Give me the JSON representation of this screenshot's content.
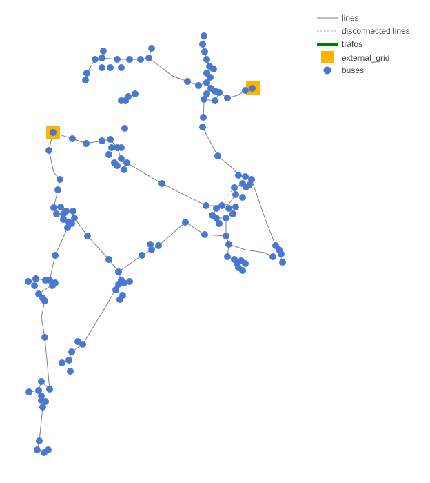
{
  "legend": {
    "lines": "lines",
    "disconnected": "disconnected lines",
    "trafos": "trafos",
    "external_grid": "external_grid",
    "buses": "buses"
  },
  "colors": {
    "line": "#7f7f7f",
    "disconnected": "#a9a9a9",
    "trafo": "#008000",
    "external_grid": "#ffb400",
    "bus": "#4a78cf"
  },
  "network": {
    "buses": [
      [
        296,
        52
      ],
      [
        294,
        64
      ],
      [
        297,
        75
      ],
      [
        300,
        86
      ],
      [
        304,
        96
      ],
      [
        310,
        100
      ],
      [
        300,
        106
      ],
      [
        305,
        112
      ],
      [
        300,
        120
      ],
      [
        306,
        128
      ],
      [
        312,
        132
      ],
      [
        318,
        134
      ],
      [
        300,
        136
      ],
      [
        312,
        146
      ],
      [
        296,
        144
      ],
      [
        330,
        142
      ],
      [
        356,
        131
      ],
      [
        366,
        128
      ],
      [
        295,
        170
      ],
      [
        294,
        184
      ],
      [
        316,
        226
      ],
      [
        346,
        254
      ],
      [
        356,
        256
      ],
      [
        365,
        260
      ],
      [
        352,
        266
      ],
      [
        340,
        272
      ],
      [
        362,
        268
      ],
      [
        342,
        282
      ],
      [
        352,
        286
      ],
      [
        357,
        271
      ],
      [
        299,
        298
      ],
      [
        314,
        302
      ],
      [
        322,
        298
      ],
      [
        332,
        302
      ],
      [
        342,
        300
      ],
      [
        338,
        310
      ],
      [
        328,
        316
      ],
      [
        314,
        316
      ],
      [
        318,
        324
      ],
      [
        308,
        312
      ],
      [
        297,
        340
      ],
      [
        328,
        342
      ],
      [
        332,
        354
      ],
      [
        330,
        372
      ],
      [
        340,
        376
      ],
      [
        344,
        382
      ],
      [
        350,
        378
      ],
      [
        356,
        382
      ],
      [
        346,
        388
      ],
      [
        352,
        392
      ],
      [
        400,
        356
      ],
      [
        405,
        362
      ],
      [
        408,
        368
      ],
      [
        396,
        372
      ],
      [
        410,
        380
      ],
      [
        235,
        266
      ],
      [
        269,
        322
      ],
      [
        230,
        356
      ],
      [
        218,
        354
      ],
      [
        220,
        362
      ],
      [
        206,
        370
      ],
      [
        150,
        74
      ],
      [
        170,
        86
      ],
      [
        188,
        86
      ],
      [
        160,
        98
      ],
      [
        176,
        98
      ],
      [
        148,
        98
      ],
      [
        138,
        86
      ],
      [
        148,
        84
      ],
      [
        126,
        106
      ],
      [
        124,
        116
      ],
      [
        204,
        86
      ],
      [
        216,
        84
      ],
      [
        220,
        70
      ],
      [
        272,
        118
      ],
      [
        288,
        124
      ],
      [
        196,
        136
      ],
      [
        186,
        140
      ],
      [
        182,
        146
      ],
      [
        176,
        146
      ],
      [
        181,
        186
      ],
      [
        105,
        201
      ],
      [
        125,
        208
      ],
      [
        148,
        204
      ],
      [
        160,
        202
      ],
      [
        162,
        214
      ],
      [
        176,
        214
      ],
      [
        170,
        214
      ],
      [
        158,
        224
      ],
      [
        176,
        230
      ],
      [
        166,
        236
      ],
      [
        170,
        240
      ],
      [
        184,
        236
      ],
      [
        180,
        246
      ],
      [
        77,
        192
      ],
      [
        71,
        218
      ],
      [
        87,
        260
      ],
      [
        84,
        275
      ],
      [
        78,
        301
      ],
      [
        88,
        300
      ],
      [
        82,
        310
      ],
      [
        96,
        306
      ],
      [
        92,
        318
      ],
      [
        100,
        322
      ],
      [
        106,
        306
      ],
      [
        108,
        316
      ],
      [
        98,
        330
      ],
      [
        104,
        324
      ],
      [
        92,
        310
      ],
      [
        127,
        342
      ],
      [
        158,
        376
      ],
      [
        172,
        394
      ],
      [
        176,
        406
      ],
      [
        188,
        408
      ],
      [
        172,
        412
      ],
      [
        180,
        410
      ],
      [
        168,
        420
      ],
      [
        178,
        428
      ],
      [
        174,
        434
      ],
      [
        80,
        370
      ],
      [
        41,
        408
      ],
      [
        52,
        404
      ],
      [
        50,
        414
      ],
      [
        66,
        406
      ],
      [
        72,
        406
      ],
      [
        80,
        410
      ],
      [
        76,
        414
      ],
      [
        56,
        426
      ],
      [
        62,
        432
      ],
      [
        65,
        436
      ],
      [
        65,
        489
      ],
      [
        113,
        495
      ],
      [
        120,
        499
      ],
      [
        104,
        510
      ],
      [
        100,
        522
      ],
      [
        90,
        526
      ],
      [
        102,
        538
      ],
      [
        60,
        553
      ],
      [
        72,
        564
      ],
      [
        42,
        568
      ],
      [
        56,
        566
      ],
      [
        60,
        574
      ],
      [
        66,
        582
      ],
      [
        62,
        590
      ],
      [
        60,
        580
      ],
      [
        57,
        639
      ],
      [
        54,
        652
      ],
      [
        64,
        656
      ],
      [
        70,
        652
      ]
    ],
    "external_grids": [
      [
        367,
        128
      ],
      [
        77,
        192
      ]
    ],
    "lines": [
      [
        [
          296,
          52
        ],
        [
          294,
          64
        ],
        [
          297,
          75
        ],
        [
          300,
          86
        ],
        [
          304,
          96
        ]
      ],
      [
        [
          304,
          96
        ],
        [
          310,
          100
        ],
        [
          300,
          106
        ],
        [
          305,
          112
        ],
        [
          300,
          120
        ],
        [
          306,
          128
        ]
      ],
      [
        [
          306,
          128
        ],
        [
          312,
          132
        ],
        [
          318,
          134
        ],
        [
          312,
          146
        ],
        [
          296,
          144
        ]
      ],
      [
        [
          318,
          134
        ],
        [
          330,
          142
        ],
        [
          345,
          138
        ],
        [
          356,
          131
        ],
        [
          367,
          128
        ]
      ],
      [
        [
          300,
          136
        ],
        [
          296,
          150
        ],
        [
          295,
          170
        ],
        [
          294,
          184
        ],
        [
          302,
          200
        ],
        [
          316,
          226
        ],
        [
          338,
          244
        ],
        [
          346,
          254
        ]
      ],
      [
        [
          346,
          254
        ],
        [
          356,
          256
        ],
        [
          365,
          260
        ],
        [
          357,
          271
        ],
        [
          352,
          266
        ],
        [
          340,
          272
        ],
        [
          342,
          282
        ]
      ],
      [
        [
          365,
          260
        ],
        [
          385,
          318
        ],
        [
          400,
          356
        ],
        [
          405,
          362
        ],
        [
          410,
          380
        ]
      ],
      [
        [
          342,
          282
        ],
        [
          332,
          296
        ],
        [
          322,
          298
        ],
        [
          314,
          302
        ],
        [
          308,
          312
        ]
      ],
      [
        [
          342,
          300
        ],
        [
          338,
          310
        ],
        [
          328,
          316
        ],
        [
          314,
          316
        ],
        [
          318,
          324
        ]
      ],
      [
        [
          322,
          298
        ],
        [
          299,
          298
        ],
        [
          235,
          266
        ],
        [
          184,
          236
        ]
      ],
      [
        [
          328,
          316
        ],
        [
          328,
          342
        ],
        [
          297,
          340
        ],
        [
          269,
          322
        ],
        [
          230,
          356
        ],
        [
          220,
          362
        ],
        [
          206,
          370
        ],
        [
          172,
          394
        ]
      ],
      [
        [
          328,
          342
        ],
        [
          332,
          354
        ],
        [
          330,
          372
        ],
        [
          340,
          376
        ],
        [
          346,
          388
        ],
        [
          352,
          392
        ]
      ],
      [
        [
          332,
          354
        ],
        [
          356,
          362
        ],
        [
          384,
          366
        ],
        [
          396,
          372
        ]
      ],
      [
        [
          150,
          74
        ],
        [
          148,
          84
        ],
        [
          138,
          86
        ],
        [
          126,
          106
        ],
        [
          124,
          116
        ]
      ],
      [
        [
          148,
          84
        ],
        [
          170,
          86
        ],
        [
          188,
          86
        ],
        [
          204,
          86
        ],
        [
          216,
          84
        ],
        [
          220,
          70
        ]
      ],
      [
        [
          216,
          84
        ],
        [
          250,
          110
        ],
        [
          272,
          118
        ],
        [
          288,
          124
        ],
        [
          300,
          120
        ]
      ],
      [
        [
          196,
          136
        ],
        [
          186,
          140
        ],
        [
          182,
          146
        ],
        [
          176,
          146
        ]
      ],
      [
        [
          77,
          192
        ],
        [
          105,
          201
        ],
        [
          125,
          208
        ],
        [
          148,
          204
        ],
        [
          160,
          202
        ],
        [
          170,
          214
        ],
        [
          176,
          214
        ]
      ],
      [
        [
          170,
          214
        ],
        [
          176,
          230
        ],
        [
          184,
          236
        ],
        [
          180,
          246
        ]
      ],
      [
        [
          77,
          192
        ],
        [
          71,
          218
        ],
        [
          78,
          250
        ],
        [
          87,
          260
        ],
        [
          84,
          275
        ],
        [
          78,
          301
        ]
      ],
      [
        [
          78,
          301
        ],
        [
          88,
          300
        ],
        [
          96,
          306
        ],
        [
          106,
          306
        ],
        [
          108,
          316
        ],
        [
          98,
          330
        ]
      ],
      [
        [
          108,
          316
        ],
        [
          127,
          342
        ],
        [
          158,
          376
        ],
        [
          172,
          394
        ],
        [
          176,
          406
        ],
        [
          188,
          408
        ]
      ],
      [
        [
          176,
          406
        ],
        [
          168,
          420
        ],
        [
          178,
          428
        ],
        [
          174,
          434
        ]
      ],
      [
        [
          172,
          412
        ],
        [
          150,
          450
        ],
        [
          120,
          499
        ],
        [
          104,
          510
        ],
        [
          100,
          522
        ],
        [
          90,
          526
        ]
      ],
      [
        [
          98,
          330
        ],
        [
          80,
          370
        ],
        [
          72,
          406
        ],
        [
          66,
          406
        ],
        [
          52,
          404
        ],
        [
          41,
          408
        ]
      ],
      [
        [
          72,
          406
        ],
        [
          80,
          410
        ],
        [
          56,
          426
        ],
        [
          62,
          432
        ],
        [
          65,
          436
        ]
      ],
      [
        [
          65,
          436
        ],
        [
          60,
          460
        ],
        [
          65,
          489
        ],
        [
          72,
          564
        ]
      ],
      [
        [
          72,
          564
        ],
        [
          60,
          553
        ],
        [
          56,
          566
        ],
        [
          42,
          568
        ]
      ],
      [
        [
          60,
          574
        ],
        [
          66,
          582
        ],
        [
          62,
          590
        ],
        [
          60,
          610
        ],
        [
          57,
          639
        ],
        [
          54,
          652
        ],
        [
          64,
          656
        ],
        [
          70,
          652
        ]
      ]
    ],
    "disconnected": [
      [
        [
          181,
          186
        ],
        [
          182,
          146
        ]
      ],
      [
        [
          340,
          272
        ],
        [
          328,
          286
        ],
        [
          314,
          302
        ]
      ]
    ]
  }
}
